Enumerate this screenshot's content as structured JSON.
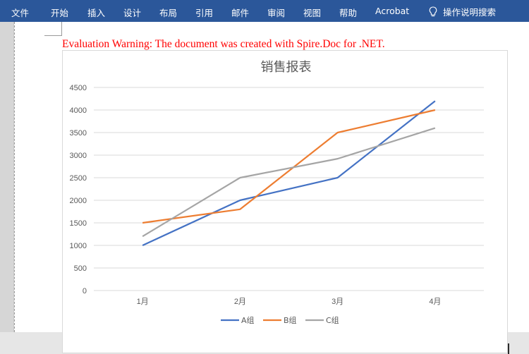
{
  "ribbon": {
    "tabs": [
      "文件",
      "开始",
      "插入",
      "设计",
      "布局",
      "引用",
      "邮件",
      "审阅",
      "视图",
      "帮助",
      "Acrobat"
    ],
    "tell_me": "操作说明搜索",
    "tell_me_icon": "lightbulb-icon",
    "bg_color": "#2b579a"
  },
  "document": {
    "warning": "Evaluation Warning: The document was created with Spire.Doc for .NET.",
    "warning_color": "#ff0000"
  },
  "chart_data": {
    "type": "line",
    "title": "销售报表",
    "categories": [
      "1月",
      "2月",
      "3月",
      "4月"
    ],
    "series": [
      {
        "name": "A组",
        "values": [
          1000,
          2000,
          2500,
          4200
        ],
        "color": "#4472c4"
      },
      {
        "name": "B组",
        "values": [
          1500,
          1800,
          3500,
          4000
        ],
        "color": "#ed7d31"
      },
      {
        "name": "C组",
        "values": [
          1200,
          2500,
          2920,
          3600
        ],
        "color": "#a5a5a5"
      }
    ],
    "yticks": [
      "0",
      "500",
      "1000",
      "1500",
      "2000",
      "2500",
      "3000",
      "3500",
      "4000",
      "4500"
    ],
    "ylim": [
      0,
      4500
    ],
    "grid": true,
    "legend": "bottom"
  }
}
